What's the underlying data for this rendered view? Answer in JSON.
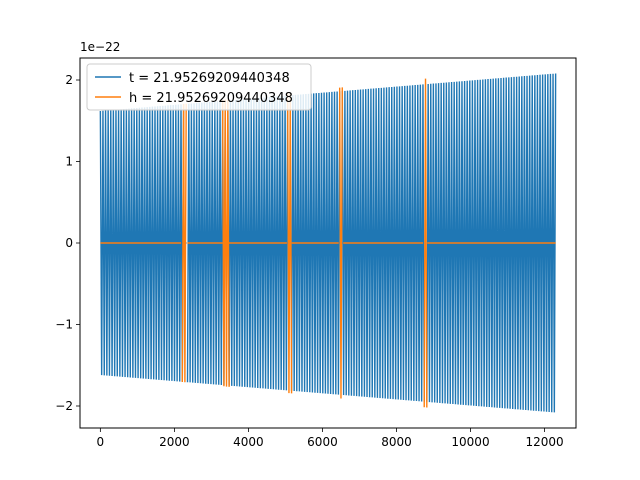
{
  "chart_data": {
    "type": "line",
    "title": "",
    "xlabel": "",
    "ylabel": "",
    "offset_label": "1e−22",
    "xlim": [
      -550,
      12850
    ],
    "ylim": [
      -2.27,
      2.27
    ],
    "xticks": [
      0,
      2000,
      4000,
      6000,
      8000,
      10000,
      12000
    ],
    "xtick_labels": [
      "0",
      "2000",
      "4000",
      "6000",
      "8000",
      "10000",
      "12000"
    ],
    "yticks": [
      -2,
      -1,
      0,
      1,
      2
    ],
    "ytick_labels": [
      "−2",
      "−1",
      "0",
      "1",
      "2"
    ],
    "grid": false,
    "legend_position": "upper-left",
    "series": [
      {
        "name": "t = 21.95269209440348",
        "color": "#1f77b4",
        "start": 0,
        "end": 12300,
        "cycles": 175,
        "amp_start": 1.62,
        "amp_end": 2.08,
        "gaps": [
          [
            2250,
            2330
          ],
          [
            3380,
            3440
          ],
          [
            5090,
            5140
          ],
          [
            6480,
            6530
          ],
          [
            8760,
            8810
          ]
        ]
      },
      {
        "name": "h = 21.95269209440348",
        "color": "#ff7f0e",
        "start": 0,
        "end": 10120,
        "tail_end": 12300,
        "cycles": 144,
        "amp_start": 1.6,
        "amp_end": 2.08,
        "gaps": [
          [
            0,
            2180
          ],
          [
            2350,
            3300
          ],
          [
            3480,
            5040
          ],
          [
            5170,
            6440
          ],
          [
            6560,
            8720
          ],
          [
            8830,
            10120
          ]
        ]
      }
    ]
  }
}
